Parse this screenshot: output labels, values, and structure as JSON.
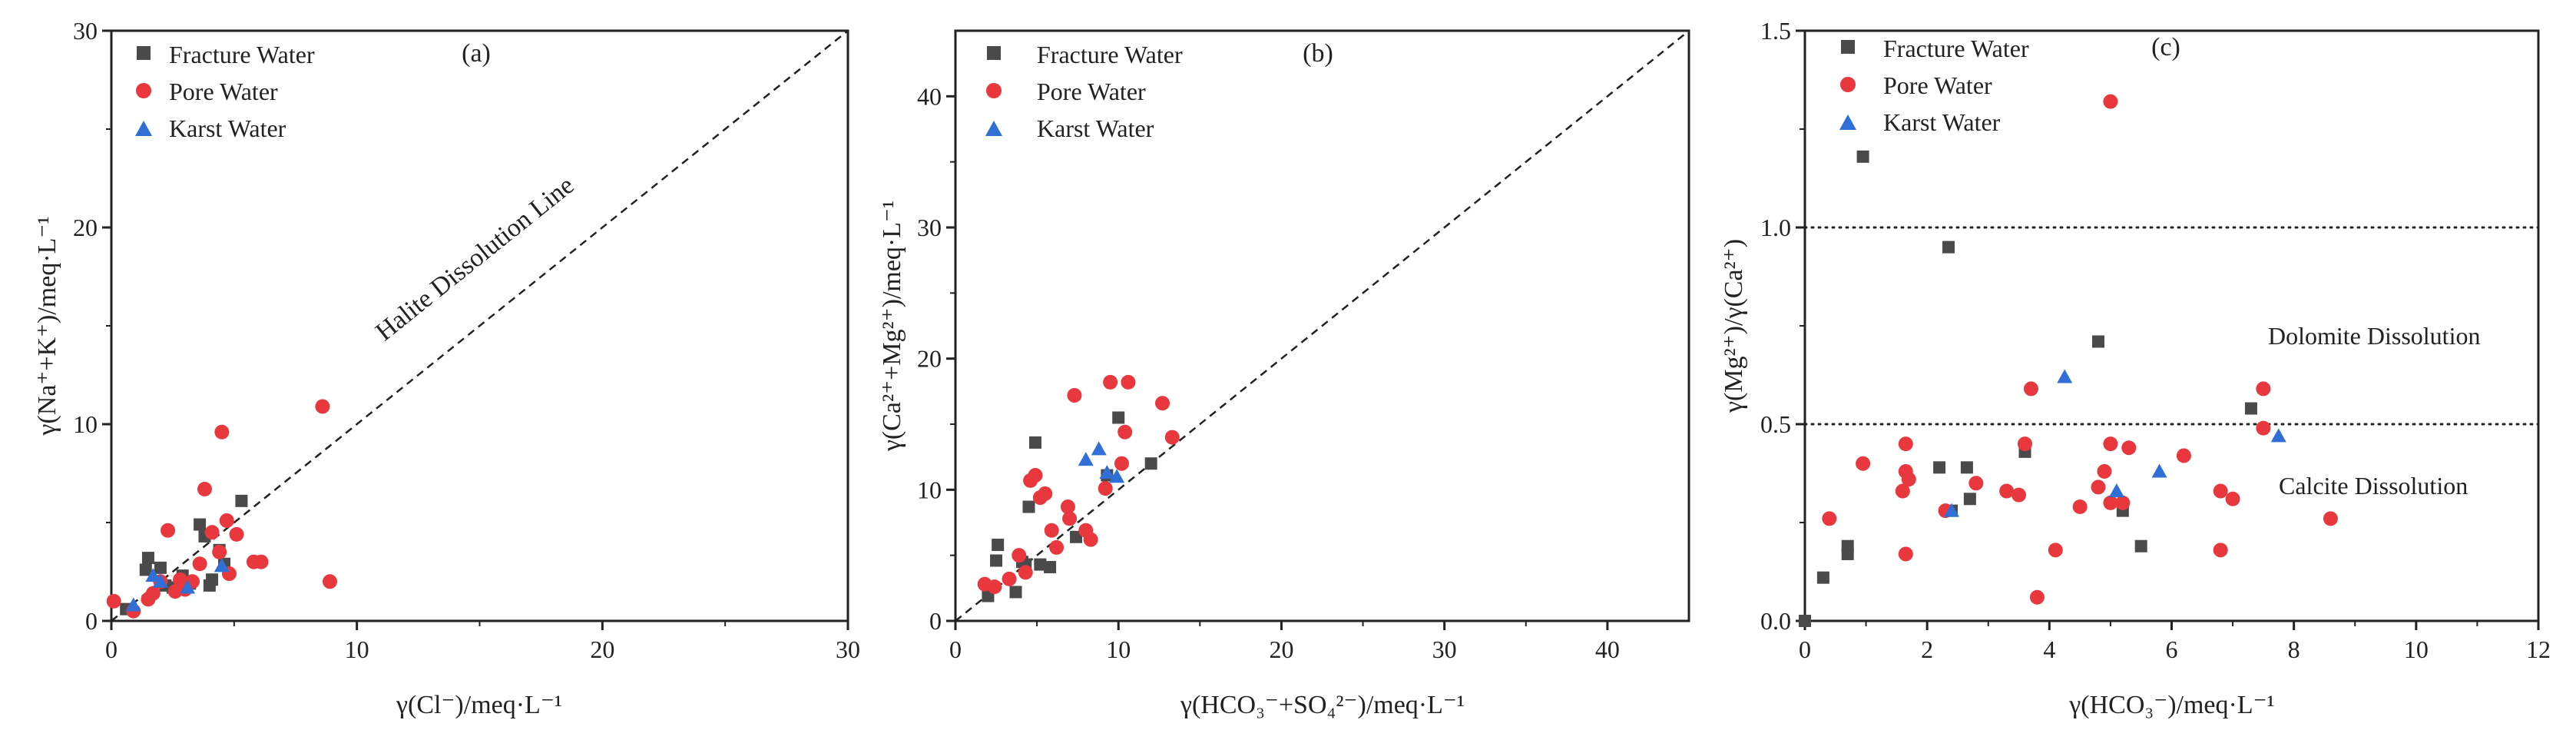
{
  "colors": {
    "fracture": "#4a4a4a",
    "pore": "#e8383d",
    "karst": "#2f6fd6",
    "axis": "#222222"
  },
  "chart_data": [
    {
      "type": "scatter",
      "panel_label": "(a)",
      "xlabel": "γ(Cl⁻)/meq·L⁻¹",
      "ylabel": "γ(Na⁺+K⁺)/meq·L⁻¹",
      "xlim": [
        0,
        30
      ],
      "ylim": [
        0,
        30
      ],
      "xticks": [
        "0",
        "10",
        "20",
        "30"
      ],
      "yticks": [
        "0",
        "10",
        "20",
        "30"
      ],
      "legend_position": "top-left",
      "reference_lines": [
        {
          "kind": "diagonal",
          "from": [
            0,
            0
          ],
          "to": [
            30,
            30
          ],
          "label": "Halite Dissolution Line"
        }
      ],
      "series": [
        {
          "name": "Fracture Water",
          "marker": "square",
          "color_key": "fracture",
          "points": [
            [
              0.6,
              0.6
            ],
            [
              1.4,
              2.6
            ],
            [
              1.5,
              3.2
            ],
            [
              2.0,
              2.7
            ],
            [
              2.2,
              1.8
            ],
            [
              2.5,
              1.7
            ],
            [
              2.9,
              2.3
            ],
            [
              3.2,
              1.9
            ],
            [
              3.6,
              4.9
            ],
            [
              3.8,
              4.3
            ],
            [
              4.0,
              1.8
            ],
            [
              4.1,
              2.1
            ],
            [
              4.4,
              3.6
            ],
            [
              4.6,
              2.9
            ],
            [
              5.3,
              6.1
            ]
          ]
        },
        {
          "name": "Pore Water",
          "marker": "circle",
          "color_key": "pore",
          "points": [
            [
              0.1,
              1.0
            ],
            [
              0.9,
              0.5
            ],
            [
              1.5,
              1.1
            ],
            [
              1.7,
              1.4
            ],
            [
              2.0,
              2.0
            ],
            [
              2.3,
              4.6
            ],
            [
              2.6,
              1.5
            ],
            [
              2.8,
              2.1
            ],
            [
              3.0,
              1.6
            ],
            [
              3.3,
              2.0
            ],
            [
              3.6,
              2.9
            ],
            [
              3.8,
              6.7
            ],
            [
              4.1,
              4.5
            ],
            [
              4.4,
              3.5
            ],
            [
              4.5,
              9.6
            ],
            [
              4.7,
              5.1
            ],
            [
              4.8,
              2.4
            ],
            [
              5.1,
              4.4
            ],
            [
              5.8,
              3.0
            ],
            [
              6.1,
              3.0
            ],
            [
              8.6,
              10.9
            ],
            [
              8.9,
              2.0
            ]
          ]
        },
        {
          "name": "Karst Water",
          "marker": "triangle",
          "color_key": "karst",
          "points": [
            [
              0.9,
              0.8
            ],
            [
              1.7,
              2.3
            ],
            [
              2.0,
              2.0
            ],
            [
              3.1,
              1.7
            ],
            [
              4.5,
              2.8
            ]
          ]
        }
      ]
    },
    {
      "type": "scatter",
      "panel_label": "(b)",
      "xlabel": "γ(HCO₃⁻+SO₄²⁻)/meq·L⁻¹",
      "ylabel": "γ(Ca²⁺+Mg²⁺)/meq·L⁻¹",
      "xlim": [
        0,
        45
      ],
      "ylim": [
        0,
        45
      ],
      "xticks": [
        "0",
        "10",
        "20",
        "30",
        "40"
      ],
      "yticks": [
        "0",
        "10",
        "20",
        "30",
        "40"
      ],
      "legend_position": "top-left",
      "reference_lines": [
        {
          "kind": "diagonal",
          "from": [
            0,
            0
          ],
          "to": [
            45,
            45
          ],
          "label": ""
        }
      ],
      "series": [
        {
          "name": "Fracture Water",
          "marker": "square",
          "color_key": "fracture",
          "points": [
            [
              2.0,
              1.9
            ],
            [
              2.5,
              4.6
            ],
            [
              2.6,
              5.8
            ],
            [
              3.7,
              2.2
            ],
            [
              4.1,
              4.5
            ],
            [
              4.3,
              4.3
            ],
            [
              4.5,
              8.7
            ],
            [
              4.9,
              13.6
            ],
            [
              5.2,
              4.3
            ],
            [
              5.8,
              4.1
            ],
            [
              7.4,
              6.4
            ],
            [
              9.3,
              11.1
            ],
            [
              10.0,
              15.5
            ],
            [
              12.0,
              12.0
            ]
          ]
        },
        {
          "name": "Pore Water",
          "marker": "circle",
          "color_key": "pore",
          "points": [
            [
              1.8,
              2.8
            ],
            [
              2.4,
              2.6
            ],
            [
              3.3,
              3.2
            ],
            [
              3.9,
              5.0
            ],
            [
              4.3,
              3.7
            ],
            [
              4.6,
              10.7
            ],
            [
              4.9,
              11.1
            ],
            [
              5.2,
              9.4
            ],
            [
              5.5,
              9.7
            ],
            [
              5.9,
              6.9
            ],
            [
              6.2,
              5.6
            ],
            [
              6.9,
              8.7
            ],
            [
              7.0,
              7.8
            ],
            [
              7.3,
              17.2
            ],
            [
              8.0,
              6.9
            ],
            [
              8.3,
              6.2
            ],
            [
              9.2,
              10.1
            ],
            [
              9.5,
              18.2
            ],
            [
              10.2,
              12.0
            ],
            [
              10.4,
              14.4
            ],
            [
              10.6,
              18.2
            ],
            [
              12.7,
              16.6
            ],
            [
              13.3,
              14.0
            ]
          ]
        },
        {
          "name": "Karst Water",
          "marker": "triangle",
          "color_key": "karst",
          "points": [
            [
              8.0,
              12.3
            ],
            [
              8.8,
              13.1
            ],
            [
              9.3,
              11.3
            ],
            [
              9.9,
              11.0
            ]
          ]
        }
      ]
    },
    {
      "type": "scatter",
      "panel_label": "(c)",
      "xlabel": "γ(HCO₃⁻)/meq·L⁻¹",
      "ylabel": "γ(Mg²⁺)/γ(Ca²⁺)",
      "xlim": [
        0,
        12
      ],
      "ylim": [
        0,
        1.5
      ],
      "xticks": [
        "0",
        "2",
        "4",
        "6",
        "8",
        "10",
        "12"
      ],
      "yticks": [
        "0.0",
        "0.5",
        "1.0",
        "1.5"
      ],
      "legend_position": "top-left",
      "reference_lines": [
        {
          "kind": "horizontal",
          "y": 1.0,
          "label": ""
        },
        {
          "kind": "horizontal",
          "y": 0.5,
          "label": ""
        }
      ],
      "region_labels": [
        "Dolomite Dissolution",
        "Calcite Dissolution"
      ],
      "series": [
        {
          "name": "Fracture Water",
          "marker": "square",
          "color_key": "fracture",
          "points": [
            [
              0.0,
              0.0
            ],
            [
              0.3,
              0.11
            ],
            [
              0.7,
              0.17
            ],
            [
              0.7,
              0.19
            ],
            [
              0.95,
              1.18
            ],
            [
              2.2,
              0.39
            ],
            [
              2.35,
              0.95
            ],
            [
              2.4,
              0.28
            ],
            [
              2.65,
              0.39
            ],
            [
              2.7,
              0.31
            ],
            [
              3.6,
              0.43
            ],
            [
              4.8,
              0.71
            ],
            [
              5.2,
              0.28
            ],
            [
              5.5,
              0.19
            ],
            [
              7.3,
              0.54
            ]
          ]
        },
        {
          "name": "Pore Water",
          "marker": "circle",
          "color_key": "pore",
          "points": [
            [
              0.4,
              0.26
            ],
            [
              0.95,
              0.4
            ],
            [
              1.6,
              0.33
            ],
            [
              1.65,
              0.45
            ],
            [
              1.65,
              0.38
            ],
            [
              1.7,
              0.36
            ],
            [
              1.65,
              0.17
            ],
            [
              2.3,
              0.28
            ],
            [
              2.8,
              0.35
            ],
            [
              3.3,
              0.33
            ],
            [
              3.5,
              0.32
            ],
            [
              3.6,
              0.45
            ],
            [
              3.7,
              0.59
            ],
            [
              3.8,
              0.06
            ],
            [
              4.1,
              0.18
            ],
            [
              4.5,
              0.29
            ],
            [
              4.8,
              0.34
            ],
            [
              4.9,
              0.38
            ],
            [
              5.0,
              1.32
            ],
            [
              5.0,
              0.3
            ],
            [
              5.0,
              0.45
            ],
            [
              5.2,
              0.3
            ],
            [
              5.3,
              0.44
            ],
            [
              6.2,
              0.42
            ],
            [
              6.8,
              0.33
            ],
            [
              6.8,
              0.18
            ],
            [
              7.0,
              0.31
            ],
            [
              7.5,
              0.59
            ],
            [
              7.5,
              0.49
            ],
            [
              8.6,
              0.26
            ]
          ]
        },
        {
          "name": "Karst Water",
          "marker": "triangle",
          "color_key": "karst",
          "points": [
            [
              2.4,
              0.28
            ],
            [
              4.25,
              0.62
            ],
            [
              5.1,
              0.33
            ],
            [
              5.8,
              0.38
            ],
            [
              7.75,
              0.47
            ]
          ]
        }
      ]
    }
  ]
}
